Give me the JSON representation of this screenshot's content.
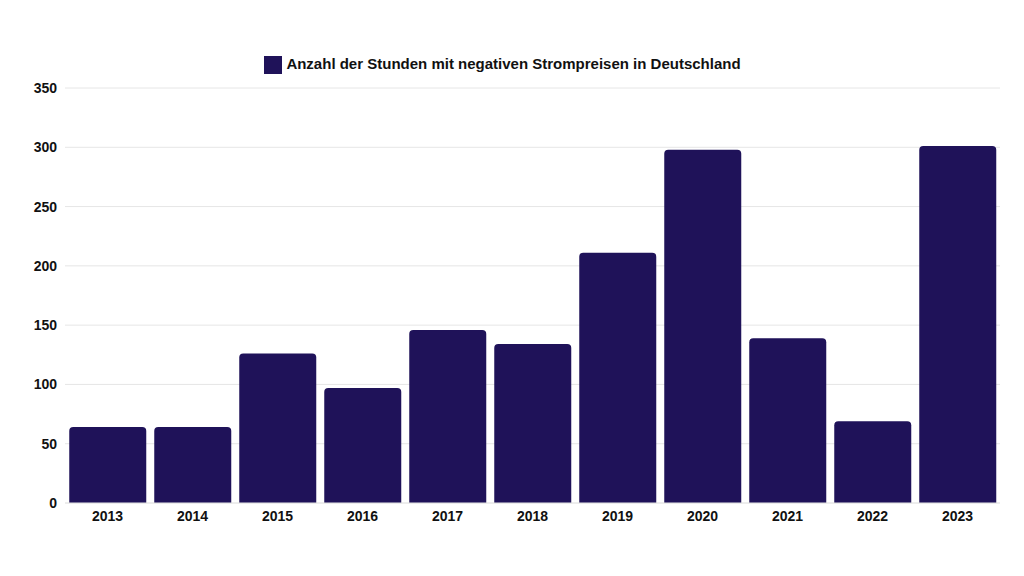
{
  "chart_data": {
    "type": "bar",
    "categories": [
      "2013",
      "2014",
      "2015",
      "2016",
      "2017",
      "2018",
      "2019",
      "2020",
      "2021",
      "2022",
      "2023"
    ],
    "series": [
      {
        "name": "Anzahl der Stunden mit negativen Strompreisen in Deutschland",
        "color": "#1f1259",
        "values": [
          64,
          64,
          126,
          97,
          146,
          134,
          211,
          298,
          139,
          69,
          301
        ]
      }
    ],
    "ylim": [
      0,
      350
    ],
    "yticks": [
      0,
      50,
      100,
      150,
      200,
      250,
      300,
      350
    ],
    "grid": true,
    "legend": "top"
  }
}
